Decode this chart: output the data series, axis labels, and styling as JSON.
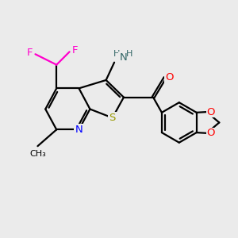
{
  "background_color": "#ebebeb",
  "atoms": {
    "N_color": "#0000ff",
    "S_color": "#999900",
    "O_color": "#ff0000",
    "F_color": "#ff00cc",
    "NH2_color": "#336666",
    "C_color": "#000000"
  },
  "layout": {
    "xlim": [
      0,
      10
    ],
    "ylim": [
      0,
      10
    ]
  }
}
